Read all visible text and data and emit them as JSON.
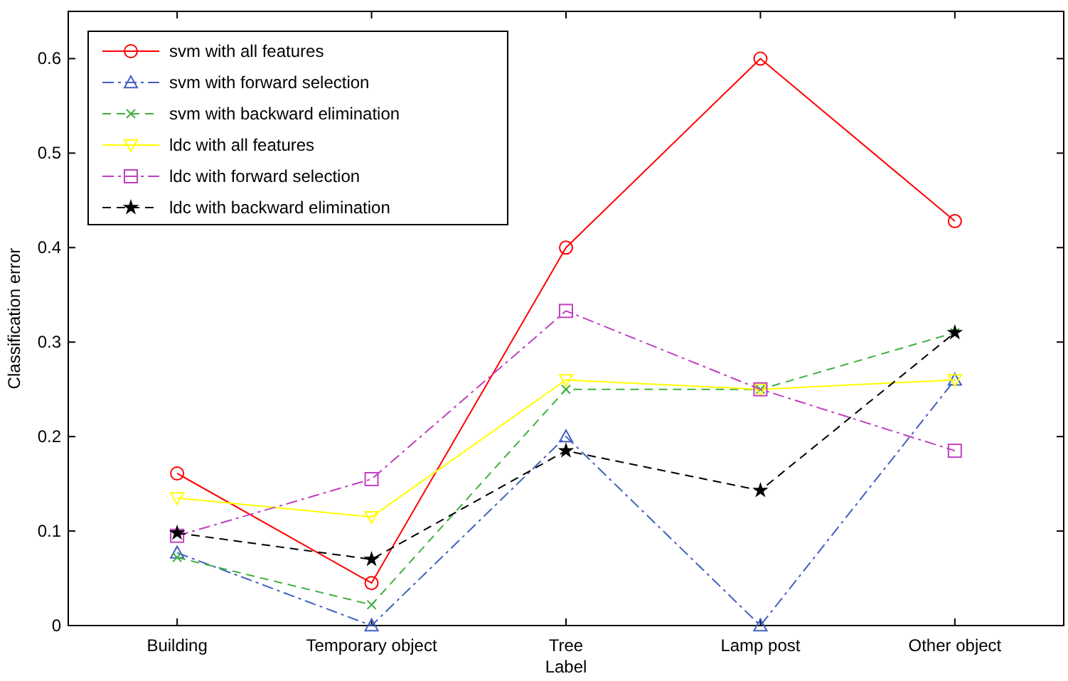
{
  "chart_data": {
    "type": "line",
    "xlabel": "Label",
    "ylabel": "Classification error",
    "categories": [
      "Building",
      "Temporary object",
      "Tree",
      "Lamp post",
      "Other object"
    ],
    "ylim": [
      0,
      0.65
    ],
    "yticks": [
      0,
      0.1,
      0.2,
      0.3,
      0.4,
      0.5,
      0.6
    ],
    "grid": false,
    "legend": "top left",
    "series": [
      {
        "name": "svm with all features",
        "color": "#ff0000",
        "marker": "circle",
        "line_style": "solid",
        "values": [
          0.161,
          0.045,
          0.4,
          0.6,
          0.428
        ]
      },
      {
        "name": "svm with forward selection",
        "color": "#4060c0",
        "marker": "triangle",
        "line_style": "dashdot",
        "values": [
          0.077,
          0,
          0.2,
          0,
          0.26
        ]
      },
      {
        "name": "svm with backward elimination",
        "color": "#40b040",
        "marker": "cross",
        "line_style": "dashed",
        "values": [
          0.072,
          0.022,
          0.25,
          0.25,
          0.31
        ]
      },
      {
        "name": "ldc with all features",
        "color": "#ffff00",
        "marker": "triangle-down",
        "line_style": "solid",
        "values": [
          0.135,
          0.115,
          0.26,
          0.25,
          0.26
        ]
      },
      {
        "name": "ldc with forward selection",
        "color": "#c040c0",
        "marker": "square",
        "line_style": "dashdot",
        "values": [
          0.095,
          0.155,
          0.333,
          0.25,
          0.185
        ]
      },
      {
        "name": "ldc with backward elimination",
        "color": "#000000",
        "marker": "star",
        "line_style": "dashed",
        "values": [
          0.098,
          0.07,
          0.185,
          0.143,
          0.31
        ]
      }
    ]
  }
}
